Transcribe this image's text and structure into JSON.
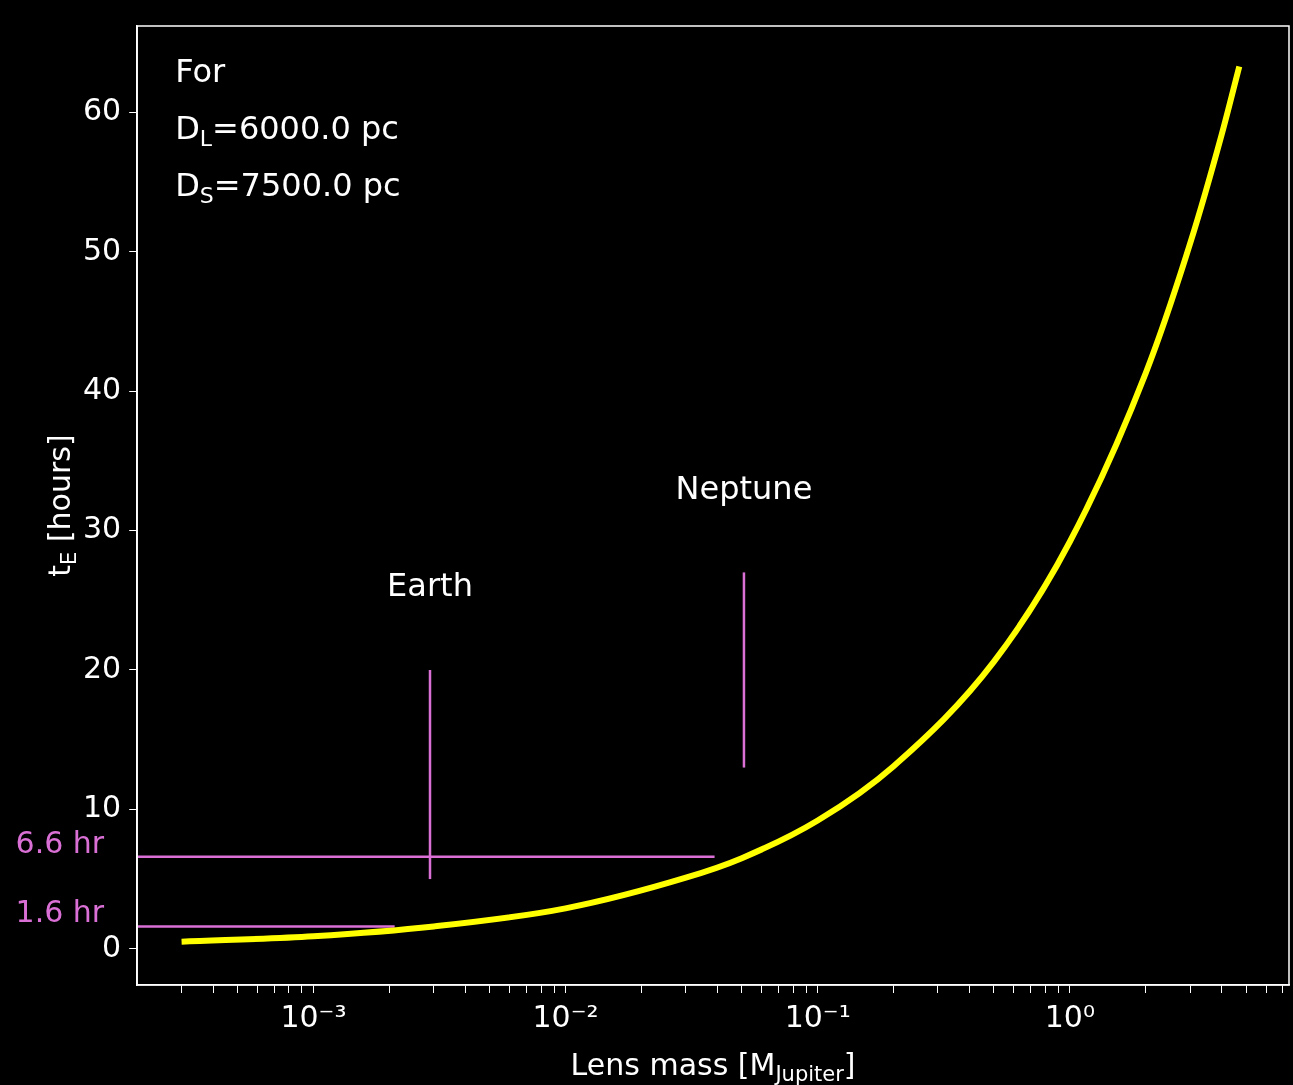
{
  "chart_data": {
    "type": "line",
    "xlabel": "Lens mass [M$_{Jupiter}$]",
    "ylabel": "t$_{E}$ [hours]",
    "log": "x",
    "xlim": [
      0.0002,
      7.4
    ],
    "ylim": [
      -2.6,
      66.2
    ],
    "xticks": [
      {
        "value": 0.0003,
        "label": null
      },
      {
        "value": 0.0004,
        "label": null
      },
      {
        "value": 0.0005,
        "label": null
      },
      {
        "value": 0.0006,
        "label": null
      },
      {
        "value": 0.0007,
        "label": null
      },
      {
        "value": 0.0008,
        "label": null
      },
      {
        "value": 0.0009,
        "label": null
      },
      {
        "value": 0.001,
        "label": "10⁻³"
      },
      {
        "value": 0.002,
        "label": null
      },
      {
        "value": 0.003,
        "label": null
      },
      {
        "value": 0.004,
        "label": null
      },
      {
        "value": 0.005,
        "label": null
      },
      {
        "value": 0.006,
        "label": null
      },
      {
        "value": 0.007,
        "label": null
      },
      {
        "value": 0.008,
        "label": null
      },
      {
        "value": 0.009,
        "label": null
      },
      {
        "value": 0.01,
        "label": "10⁻²"
      },
      {
        "value": 0.02,
        "label": null
      },
      {
        "value": 0.03,
        "label": null
      },
      {
        "value": 0.04,
        "label": null
      },
      {
        "value": 0.05,
        "label": null
      },
      {
        "value": 0.06,
        "label": null
      },
      {
        "value": 0.07,
        "label": null
      },
      {
        "value": 0.08,
        "label": null
      },
      {
        "value": 0.09,
        "label": null
      },
      {
        "value": 0.1,
        "label": "10⁻¹"
      },
      {
        "value": 0.2,
        "label": null
      },
      {
        "value": 0.3,
        "label": null
      },
      {
        "value": 0.4,
        "label": null
      },
      {
        "value": 0.5,
        "label": null
      },
      {
        "value": 0.6,
        "label": null
      },
      {
        "value": 0.7,
        "label": null
      },
      {
        "value": 0.8,
        "label": null
      },
      {
        "value": 0.9,
        "label": null
      },
      {
        "value": 1,
        "label": "10⁰"
      },
      {
        "value": 2,
        "label": null
      },
      {
        "value": 3,
        "label": null
      },
      {
        "value": 4,
        "label": null
      },
      {
        "value": 5,
        "label": null
      },
      {
        "value": 6,
        "label": null
      },
      {
        "value": 7,
        "label": null
      }
    ],
    "yticks": [
      0,
      10,
      20,
      30,
      40,
      50,
      60
    ],
    "series": [
      {
        "type": "line",
        "color": "#ffff00",
        "x": [
          0.0003,
          0.001,
          0.003,
          0.01,
          0.03,
          0.05,
          0.1,
          0.2,
          0.5,
          1,
          2,
          3,
          4,
          4.7
        ],
        "values": [
          0.5,
          0.9,
          1.6,
          2.9,
          5.1,
          6.5,
          9.2,
          13.1,
          20.6,
          29.2,
          41.3,
          50.6,
          58.4,
          63.3
        ]
      },
      {
        "type": "line",
        "color": "#da70d6",
        "x": [
          0.0002,
          0.039
        ],
        "values": [
          6.6,
          6.6
        ]
      },
      {
        "type": "line",
        "color": "#da70d6",
        "x": [
          0.0002,
          0.0021
        ],
        "values": [
          1.6,
          1.6
        ]
      },
      {
        "type": "line",
        "color": "#da70d6",
        "x": [
          0.0029,
          0.0029
        ],
        "values": [
          5,
          20
        ]
      },
      {
        "type": "line",
        "color": "#da70d6",
        "x": [
          0.051,
          0.051
        ],
        "values": [
          13,
          27
        ]
      }
    ],
    "annotations": [
      "For",
      "D$_{L}$=6000.0 pc",
      "D$_{S}$=7500.0 pc",
      "Earth",
      "Neptune",
      "6.6 hr",
      "1.6 hr"
    ]
  }
}
